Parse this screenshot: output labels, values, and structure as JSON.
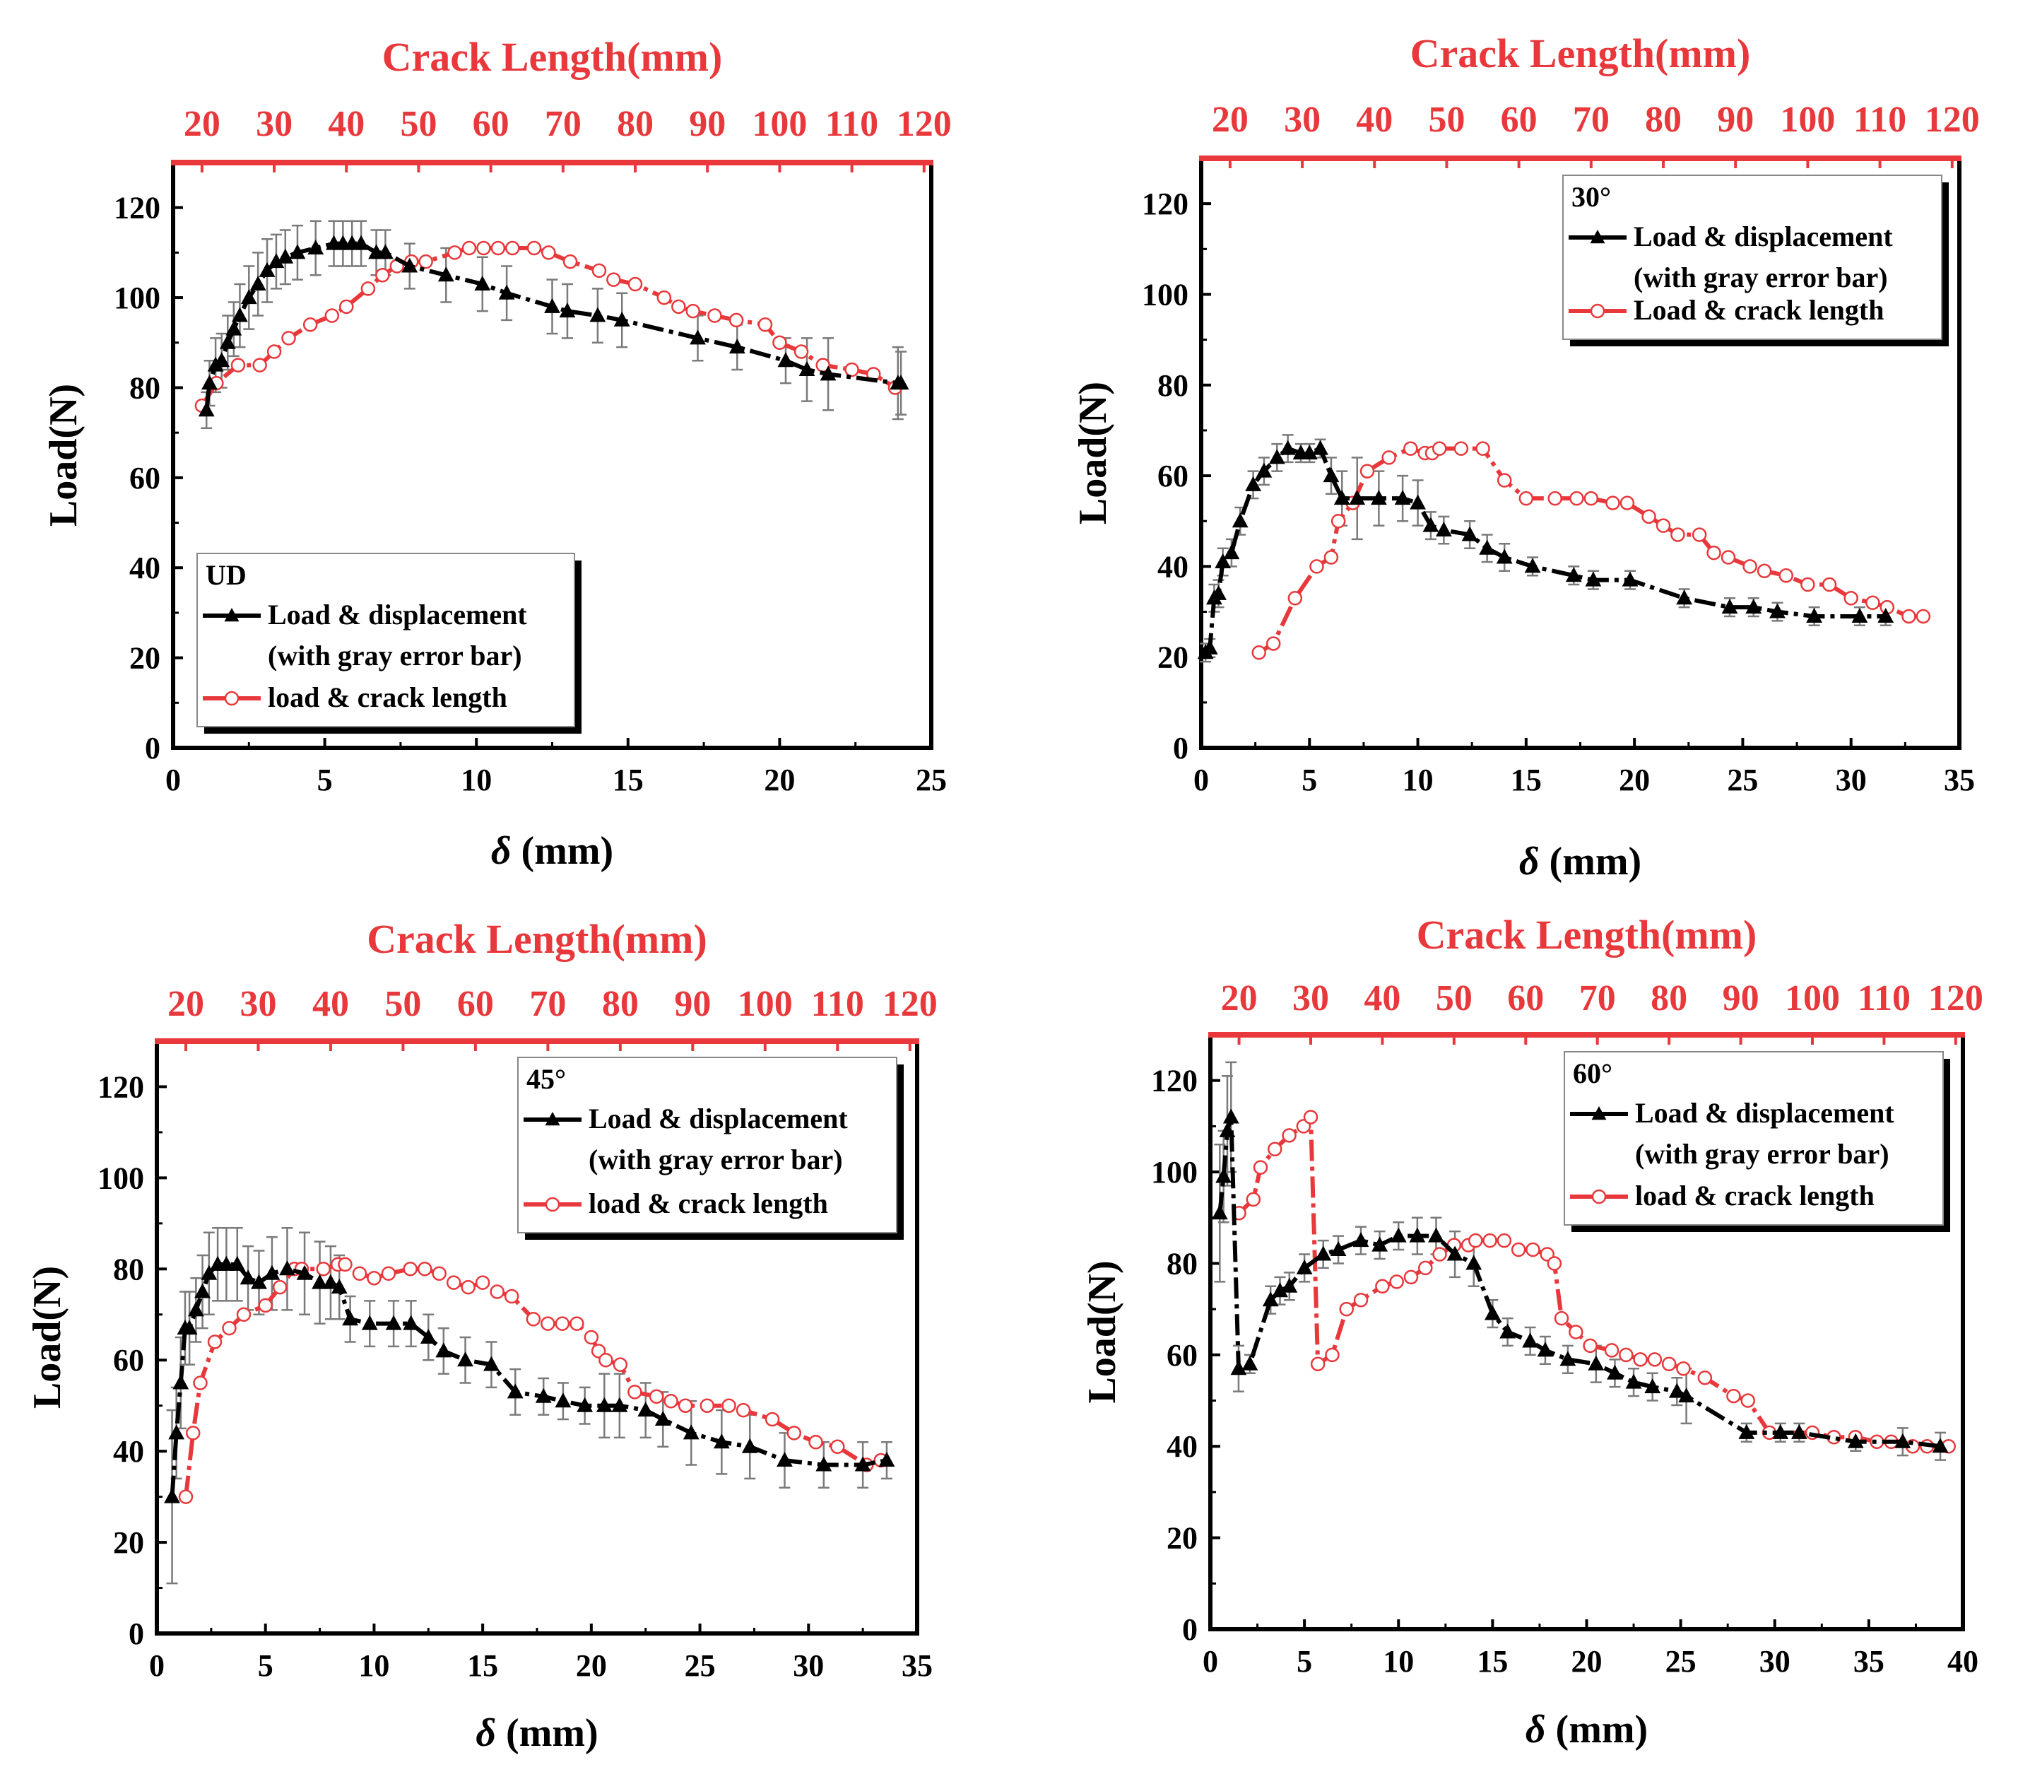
{
  "colors": {
    "red": "#e8383b",
    "black": "#000000",
    "gray": "#7a7a7a"
  },
  "chart_data": [
    {
      "type": "line",
      "panel_label": "UD",
      "top_axis_title": "Crack Length(mm)",
      "xlabel_symbol": "δ",
      "xlabel_unit": "(mm)",
      "ylabel": "Load(N)",
      "xlim": [
        0,
        25
      ],
      "ylim": [
        0,
        130
      ],
      "x2lim": [
        16,
        121
      ],
      "x_ticks": [
        0,
        5,
        10,
        15,
        20,
        25
      ],
      "x2_ticks": [
        20,
        30,
        40,
        50,
        60,
        70,
        80,
        90,
        100,
        110,
        120
      ],
      "y_ticks": [
        0,
        20,
        40,
        60,
        80,
        100,
        120
      ],
      "legend": {
        "title": "UD",
        "items": [
          "Load & displacement",
          "(with gray error bar)",
          "load & crack length"
        ],
        "position": "bottom-left"
      },
      "series": [
        {
          "name": "Load & displacement",
          "axis": "bottom",
          "x": [
            1.1,
            1.2,
            1.4,
            1.6,
            1.8,
            2.0,
            2.2,
            2.5,
            2.8,
            3.1,
            3.4,
            3.7,
            4.1,
            4.7,
            5.3,
            5.6,
            5.9,
            6.2,
            6.7,
            7.0,
            7.8,
            9.0,
            10.2,
            11.0,
            12.5,
            13.0,
            14.0,
            14.8,
            17.3,
            18.6,
            20.2,
            20.9,
            21.6,
            23.9,
            24.0
          ],
          "y": [
            75,
            81,
            85,
            86,
            90,
            93,
            96,
            100,
            103,
            106,
            108,
            109,
            110,
            111,
            112,
            112,
            112,
            112,
            110,
            110,
            107,
            105,
            103,
            101,
            98,
            97,
            96,
            95,
            91,
            89,
            86,
            84,
            83,
            81,
            81
          ],
          "err": [
            4,
            5,
            6,
            6,
            6,
            6,
            7,
            7,
            7,
            7,
            6,
            6,
            6,
            6,
            5,
            5,
            5,
            5,
            5,
            5,
            5,
            6,
            6,
            6,
            6,
            6,
            6,
            6,
            5,
            5,
            5,
            7,
            8,
            8,
            7
          ]
        },
        {
          "name": "load & crack length",
          "axis": "top",
          "x": [
            20,
            22,
            25,
            28,
            30,
            32,
            35,
            38,
            40,
            43,
            45,
            47,
            49,
            51,
            55,
            57,
            59,
            61,
            63,
            66,
            68,
            71,
            75,
            77,
            80,
            84,
            86,
            88,
            91,
            94,
            98,
            100,
            103,
            106,
            110,
            113,
            116
          ],
          "y": [
            76,
            81,
            85,
            85,
            88,
            91,
            94,
            96,
            98,
            102,
            105,
            107,
            108,
            108,
            110,
            111,
            111,
            111,
            111,
            111,
            110,
            108,
            106,
            104,
            103,
            100,
            98,
            97,
            96,
            95,
            94,
            90,
            88,
            85,
            84,
            83,
            80
          ]
        }
      ]
    },
    {
      "type": "line",
      "panel_label": "30°",
      "top_axis_title": "Crack Length(mm)",
      "xlabel_symbol": "δ",
      "xlabel_unit": "(mm)",
      "ylabel": "Load(N)",
      "xlim": [
        0,
        35
      ],
      "ylim": [
        0,
        130
      ],
      "x2lim": [
        16,
        121
      ],
      "x_ticks": [
        0,
        5,
        10,
        15,
        20,
        25,
        30,
        35
      ],
      "x2_ticks": [
        20,
        30,
        40,
        50,
        60,
        70,
        80,
        90,
        100,
        110,
        120
      ],
      "y_ticks": [
        0,
        20,
        40,
        60,
        80,
        100,
        120
      ],
      "legend": {
        "title": "30°",
        "items": [
          "Load & displacement",
          "(with gray error bar)",
          "Load & crack length"
        ],
        "position": "top-right"
      },
      "series": [
        {
          "name": "Load & displacement",
          "axis": "bottom",
          "x": [
            0.2,
            0.4,
            0.6,
            0.8,
            1.0,
            1.4,
            1.8,
            2.4,
            2.9,
            3.5,
            4.0,
            4.6,
            5.0,
            5.5,
            6.0,
            6.5,
            7.2,
            8.2,
            9.3,
            10.0,
            10.6,
            11.2,
            12.4,
            13.2,
            14.0,
            15.3,
            17.2,
            18.1,
            19.8,
            22.3,
            24.4,
            25.5,
            26.6,
            28.3,
            30.4,
            31.6
          ],
          "y": [
            21,
            22,
            33,
            34,
            41,
            43,
            50,
            58,
            61,
            64,
            66,
            65,
            65,
            66,
            60,
            55,
            55,
            55,
            55,
            54,
            49,
            48,
            47,
            44,
            42,
            40,
            38,
            37,
            37,
            33,
            31,
            31,
            30,
            29,
            29,
            29
          ],
          "err": [
            2,
            2,
            3,
            3,
            3,
            3,
            3,
            3,
            3,
            3,
            3,
            2,
            2,
            2,
            4,
            6,
            9,
            6,
            5,
            5,
            3,
            3,
            3,
            3,
            3,
            2,
            2,
            2,
            2,
            2,
            2,
            2,
            2,
            2,
            2,
            2
          ]
        },
        {
          "name": "Load & crack length",
          "axis": "top",
          "x": [
            24,
            26,
            29,
            32,
            34,
            35,
            37,
            39,
            42,
            45,
            47,
            48,
            49,
            52,
            55,
            58,
            61,
            65,
            68,
            70,
            73,
            75,
            78,
            80,
            82,
            85,
            87,
            89,
            92,
            94,
            97,
            100,
            103,
            106,
            109,
            111,
            114,
            116
          ],
          "y": [
            21,
            23,
            33,
            40,
            42,
            50,
            54,
            61,
            64,
            66,
            65,
            65,
            66,
            66,
            66,
            59,
            55,
            55,
            55,
            55,
            54,
            54,
            51,
            49,
            47,
            47,
            43,
            42,
            40,
            39,
            38,
            36,
            36,
            33,
            32,
            31,
            29,
            29
          ]
        }
      ]
    },
    {
      "type": "line",
      "panel_label": "45°",
      "top_axis_title": "Crack Length(mm)",
      "xlabel_symbol": "δ",
      "xlabel_unit": "(mm)",
      "ylabel": "Load(N)",
      "xlim": [
        0,
        35
      ],
      "ylim": [
        0,
        130
      ],
      "x2lim": [
        16,
        121
      ],
      "x_ticks": [
        0,
        5,
        10,
        15,
        20,
        25,
        30,
        35
      ],
      "x2_ticks": [
        20,
        30,
        40,
        50,
        60,
        70,
        80,
        90,
        100,
        110,
        120
      ],
      "y_ticks": [
        0,
        20,
        40,
        60,
        80,
        100,
        120
      ],
      "legend": {
        "title": "45°",
        "items": [
          "Load & displacement",
          "(with gray error bar)",
          "load & crack length"
        ],
        "position": "top-right"
      },
      "series": [
        {
          "name": "Load & displacement",
          "axis": "bottom",
          "x": [
            0.7,
            0.9,
            1.1,
            1.3,
            1.5,
            1.8,
            2.1,
            2.4,
            2.8,
            3.2,
            3.7,
            4.2,
            4.7,
            5.3,
            6.0,
            6.8,
            7.5,
            8.0,
            8.4,
            8.9,
            9.8,
            10.9,
            11.7,
            12.5,
            13.2,
            14.2,
            15.4,
            16.5,
            17.8,
            18.7,
            19.7,
            20.6,
            21.3,
            22.5,
            23.3,
            24.6,
            26.0,
            27.3,
            28.9,
            30.7,
            32.5,
            33.6
          ],
          "y": [
            30,
            44,
            55,
            67,
            67,
            71,
            75,
            79,
            81,
            81,
            81,
            78,
            77,
            79,
            80,
            79,
            77,
            77,
            76,
            69,
            68,
            68,
            68,
            65,
            62,
            60,
            59,
            53,
            52,
            51,
            50,
            50,
            50,
            49,
            47,
            44,
            42,
            41,
            38,
            37,
            37,
            38
          ],
          "err": [
            19,
            10,
            10,
            8,
            8,
            7,
            8,
            9,
            8,
            8,
            8,
            7,
            7,
            8,
            9,
            9,
            9,
            8,
            7,
            5,
            5,
            5,
            5,
            5,
            5,
            5,
            5,
            5,
            4,
            4,
            4,
            7,
            7,
            6,
            6,
            7,
            7,
            7,
            6,
            5,
            5,
            4
          ]
        },
        {
          "name": "load & crack length",
          "axis": "top",
          "x": [
            20,
            21,
            22,
            24,
            26,
            28,
            31,
            33,
            35,
            36,
            39,
            41,
            42,
            44,
            46,
            48,
            51,
            53,
            55,
            57,
            59,
            61,
            63,
            65,
            68,
            70,
            72,
            74,
            76,
            77,
            78,
            80,
            82,
            85,
            87,
            89,
            92,
            95,
            97,
            101,
            104,
            107,
            110,
            114,
            116
          ],
          "y": [
            30,
            44,
            55,
            64,
            67,
            70,
            72,
            76,
            80,
            80,
            80,
            81,
            81,
            79,
            78,
            79,
            80,
            80,
            79,
            77,
            76,
            77,
            75,
            74,
            69,
            68,
            68,
            68,
            65,
            62,
            60,
            59,
            53,
            52,
            51,
            50,
            50,
            50,
            49,
            47,
            44,
            42,
            41,
            37,
            38
          ]
        }
      ]
    },
    {
      "type": "line",
      "panel_label": "60°",
      "top_axis_title": "Crack Length(mm)",
      "xlabel_symbol": "δ",
      "xlabel_unit": "(mm)",
      "ylabel": "Load(N)",
      "xlim": [
        0,
        40
      ],
      "ylim": [
        0,
        130
      ],
      "x2lim": [
        16,
        121
      ],
      "x_ticks": [
        0,
        5,
        10,
        15,
        20,
        25,
        30,
        35,
        40
      ],
      "x2_ticks": [
        20,
        30,
        40,
        50,
        60,
        70,
        80,
        90,
        100,
        110,
        120
      ],
      "y_ticks": [
        0,
        20,
        40,
        60,
        80,
        100,
        120
      ],
      "legend": {
        "title": "60°",
        "items": [
          "Load & displacement",
          "(with gray error bar)",
          "load & crack length"
        ],
        "position": "top-right"
      },
      "series": [
        {
          "name": "Load & displacement",
          "axis": "bottom",
          "x": [
            0.5,
            0.7,
            0.9,
            1.1,
            1.5,
            2.1,
            3.2,
            3.7,
            4.2,
            5.0,
            6.0,
            6.8,
            8.0,
            9.0,
            10.0,
            11.0,
            12.0,
            13.0,
            14.0,
            15.0,
            15.8,
            17.0,
            17.8,
            19.0,
            20.5,
            21.5,
            22.5,
            23.5,
            24.8,
            25.3,
            28.5,
            30.3,
            31.3,
            34.3,
            36.8,
            38.8
          ],
          "y": [
            91,
            99,
            109,
            112,
            57,
            58,
            72,
            74,
            75,
            79,
            82,
            83,
            85,
            84,
            86,
            86,
            86,
            82,
            80,
            69,
            65,
            63,
            61,
            59,
            58,
            56,
            54,
            53,
            52,
            51,
            43,
            43,
            43,
            41,
            41,
            40
          ],
          "err": [
            15,
            10,
            12,
            12,
            5,
            2,
            3,
            3,
            3,
            3,
            3,
            3,
            3,
            3,
            3,
            4,
            4,
            5,
            5,
            3,
            3,
            3,
            3,
            3,
            4,
            3,
            3,
            3,
            3,
            6,
            2,
            2,
            2,
            2,
            3,
            3
          ]
        },
        {
          "name": "load & crack length",
          "axis": "top",
          "x": [
            20,
            22,
            23,
            25,
            27,
            29,
            30,
            31,
            33,
            35,
            37,
            40,
            42,
            44,
            46,
            48,
            50,
            52,
            53,
            55,
            57,
            59,
            61,
            63,
            64,
            65,
            67,
            69,
            72,
            74,
            76,
            78,
            80,
            82,
            85,
            89,
            91,
            94,
            100,
            103,
            106,
            109,
            111,
            114,
            116,
            119
          ],
          "y": [
            91,
            94,
            101,
            105,
            108,
            110,
            112,
            58,
            60,
            70,
            72,
            75,
            76,
            77,
            79,
            82,
            84,
            84,
            85,
            85,
            85,
            83,
            83,
            82,
            80,
            68,
            65,
            62,
            61,
            60,
            59,
            59,
            58,
            57,
            55,
            51,
            50,
            43,
            43,
            42,
            42,
            41,
            41,
            40,
            40,
            40
          ]
        }
      ]
    }
  ]
}
